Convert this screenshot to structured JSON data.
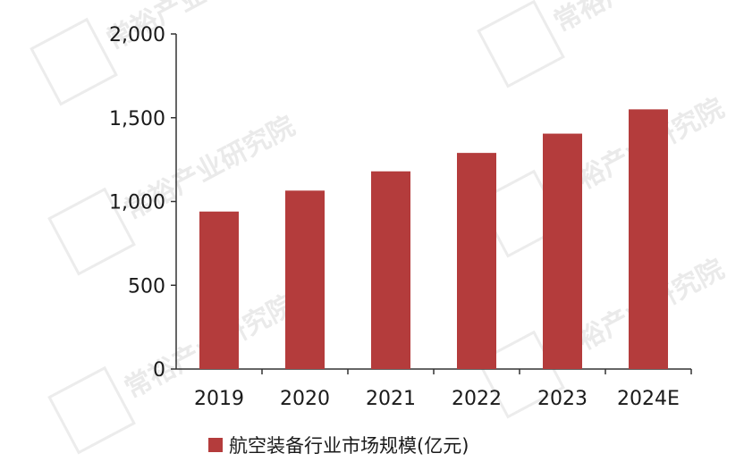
{
  "colors": {
    "bar": "#b43c3c",
    "axis": "#333333",
    "watermark": "#d9d9d9"
  },
  "watermark_text": "常裕产业研究院",
  "chart_data": {
    "type": "bar",
    "categories": [
      "2019",
      "2020",
      "2021",
      "2022",
      "2023",
      "2024E"
    ],
    "series": [
      {
        "name": "航空装备行业市场规模(亿元)",
        "values": [
          940,
          1065,
          1180,
          1290,
          1405,
          1550
        ]
      }
    ],
    "yticks": [
      "0",
      "500",
      "1,000",
      "1,500",
      "2,000"
    ],
    "ytick_values": [
      0,
      500,
      1000,
      1500,
      2000
    ],
    "ylim": [
      0,
      2000
    ],
    "title": "",
    "xlabel": "",
    "ylabel": "",
    "legend_position": "bottom",
    "grid": false
  }
}
